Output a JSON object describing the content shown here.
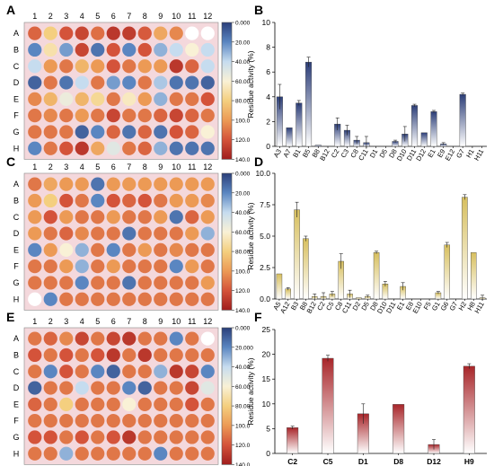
{
  "panels": {
    "A": "A",
    "B": "B",
    "C": "C",
    "D": "D",
    "E": "E",
    "F": "F"
  },
  "plate": {
    "columns": [
      "1",
      "2",
      "3",
      "4",
      "5",
      "6",
      "7",
      "8",
      "9",
      "10",
      "11",
      "12"
    ],
    "rows": [
      "A",
      "B",
      "C",
      "D",
      "E",
      "F",
      "G",
      "H"
    ]
  },
  "colorbar": {
    "ticks_AC": [
      "0.000",
      "20.00",
      "40.00",
      "60.00",
      "80.00",
      "100.0",
      "120.0",
      "140.0"
    ],
    "ticks_E": [
      "0.000",
      "20.000",
      "40.00",
      "60.00",
      "80.00",
      "100.0",
      "120.0",
      "140.0"
    ],
    "colors": [
      "#2b3f7a",
      "#5a86c1",
      "#c6dcef",
      "#f9f1d6",
      "#f4cf7f",
      "#ec9a55",
      "#d4533a",
      "#a01d1d"
    ]
  },
  "chart_data": [
    {
      "type": "heatmap",
      "title": "",
      "rows": [
        "A",
        "B",
        "C",
        "D",
        "E",
        "F",
        "G",
        "H"
      ],
      "columns": [
        "1",
        "2",
        "3",
        "4",
        "5",
        "6",
        "7",
        "8",
        "9",
        "10",
        "11",
        "12"
      ],
      "range": [
        0,
        140
      ],
      "values": [
        [
          115,
          80,
          120,
          125,
          112,
          130,
          128,
          118,
          95,
          105,
          null,
          null
        ],
        [
          20,
          70,
          25,
          125,
          15,
          120,
          20,
          120,
          30,
          40,
          60,
          40
        ],
        [
          40,
          100,
          110,
          90,
          100,
          120,
          110,
          100,
          100,
          130,
          115,
          40
        ],
        [
          10,
          110,
          15,
          40,
          110,
          25,
          20,
          110,
          35,
          15,
          15,
          10
        ],
        [
          105,
          90,
          55,
          90,
          75,
          110,
          65,
          100,
          30,
          110,
          110,
          120
        ],
        [
          110,
          105,
          110,
          100,
          110,
          125,
          110,
          110,
          115,
          125,
          115,
          110
        ],
        [
          110,
          110,
          110,
          10,
          20,
          115,
          15,
          115,
          15,
          120,
          115,
          60
        ],
        [
          20,
          110,
          120,
          130,
          95,
          50,
          110,
          115,
          30,
          15,
          15,
          15
        ]
      ]
    },
    {
      "type": "bar",
      "ylabel": "Residue activity (%)",
      "xlabel": "",
      "ylim": [
        0,
        10
      ],
      "yticks": [
        "0",
        "2",
        "4",
        "6",
        "8",
        "10"
      ],
      "categories": [
        "A3",
        "A7",
        "B1",
        "B5",
        "B8",
        "B12",
        "C2",
        "C3",
        "C8",
        "C11",
        "D1",
        "D5",
        "D8",
        "D10",
        "D11",
        "D12",
        "E1",
        "E9",
        "E12",
        "G7",
        "H1",
        "H11"
      ],
      "values": [
        4.0,
        1.5,
        3.5,
        6.8,
        0.1,
        0.0,
        1.8,
        1.3,
        0.5,
        0.3,
        0.0,
        0.0,
        0.4,
        1.0,
        3.3,
        1.1,
        2.8,
        0.2,
        0.0,
        4.2,
        0.0,
        0.0
      ],
      "errors": [
        1.0,
        0.0,
        0.2,
        0.4,
        0.0,
        0.0,
        0.5,
        0.4,
        0.3,
        0.5,
        0.0,
        0.0,
        0.1,
        0.6,
        0.1,
        0.0,
        0.1,
        0.1,
        0.0,
        0.1,
        0.0,
        0.0
      ],
      "color_top": "#2c3e78",
      "color_bottom": "#ffffff"
    },
    {
      "type": "heatmap",
      "title": "",
      "rows": [
        "A",
        "B",
        "C",
        "D",
        "E",
        "F",
        "G",
        "H"
      ],
      "columns": [
        "1",
        "2",
        "3",
        "4",
        "5",
        "6",
        "7",
        "8",
        "9",
        "10",
        "11",
        "12"
      ],
      "range": [
        0,
        140
      ],
      "values": [
        [
          110,
          95,
          100,
          100,
          15,
          100,
          100,
          100,
          100,
          100,
          100,
          100
        ],
        [
          100,
          80,
          120,
          110,
          20,
          120,
          115,
          120,
          110,
          100,
          100,
          105
        ],
        [
          100,
          120,
          100,
          110,
          110,
          100,
          110,
          110,
          100,
          15,
          115,
          100
        ],
        [
          100,
          110,
          115,
          105,
          110,
          110,
          15,
          110,
          110,
          110,
          100,
          30
        ],
        [
          20,
          100,
          60,
          30,
          110,
          20,
          110,
          100,
          110,
          105,
          110,
          110
        ],
        [
          110,
          110,
          100,
          30,
          110,
          100,
          110,
          110,
          110,
          20,
          100,
          110
        ],
        [
          110,
          110,
          110,
          20,
          110,
          110,
          15,
          110,
          110,
          110,
          110,
          100
        ],
        [
          null,
          20,
          110,
          110,
          110,
          110,
          110,
          110,
          110,
          110,
          110,
          110
        ]
      ]
    },
    {
      "type": "bar",
      "ylabel": "Residue activity (%)",
      "xlabel": "",
      "ylim": [
        0,
        10
      ],
      "yticks": [
        "0.0",
        "2.5",
        "5.0",
        "7.5",
        "10.0"
      ],
      "categories": [
        "A5",
        "A12",
        "B3",
        "B8",
        "B12",
        "C2",
        "C5",
        "C8",
        "C11",
        "D2",
        "D5",
        "D8",
        "D10",
        "D11",
        "E1",
        "E8",
        "E10",
        "F5",
        "G1",
        "G6",
        "G7",
        "H2",
        "H8",
        "H11"
      ],
      "values": [
        2.0,
        0.8,
        7.1,
        4.8,
        0.2,
        0.2,
        0.4,
        3.0,
        0.4,
        0.1,
        0.2,
        3.7,
        1.2,
        0.0,
        1.0,
        0.0,
        0.0,
        0.0,
        0.5,
        4.3,
        0.0,
        8.1,
        3.7,
        0.1
      ],
      "errors": [
        0.0,
        0.1,
        0.6,
        0.2,
        0.2,
        0.3,
        0.2,
        0.6,
        0.3,
        0.0,
        0.1,
        0.1,
        0.2,
        0.0,
        0.3,
        0.0,
        0.0,
        0.0,
        0.1,
        0.2,
        0.0,
        0.2,
        0.0,
        0.2
      ],
      "color_top": "#d7bf5e",
      "color_bottom": "#ffffff"
    },
    {
      "type": "heatmap",
      "title": "",
      "rows": [
        "A",
        "B",
        "C",
        "D",
        "E",
        "F",
        "G",
        "H"
      ],
      "columns": [
        "1",
        "2",
        "3",
        "4",
        "5",
        "6",
        "7",
        "8",
        "9",
        "10",
        "11",
        "12"
      ],
      "range": [
        0,
        140
      ],
      "values": [
        [
          110,
          115,
          105,
          125,
          110,
          125,
          130,
          110,
          110,
          20,
          110,
          null
        ],
        [
          120,
          110,
          120,
          110,
          120,
          130,
          110,
          130,
          110,
          110,
          110,
          110
        ],
        [
          110,
          20,
          120,
          110,
          20,
          10,
          110,
          110,
          30,
          130,
          125,
          20
        ],
        [
          10,
          110,
          110,
          40,
          110,
          110,
          20,
          10,
          110,
          110,
          125,
          50
        ],
        [
          115,
          110,
          80,
          110,
          110,
          110,
          60,
          110,
          110,
          110,
          120,
          110
        ],
        [
          110,
          110,
          110,
          110,
          110,
          110,
          110,
          110,
          110,
          110,
          110,
          110
        ],
        [
          120,
          120,
          110,
          120,
          110,
          120,
          130,
          110,
          110,
          110,
          110,
          110
        ],
        [
          110,
          110,
          30,
          110,
          110,
          110,
          110,
          110,
          20,
          110,
          110,
          110
        ]
      ]
    },
    {
      "type": "bar",
      "ylabel": "Residue activity (%)",
      "xlabel": "",
      "ylim": [
        0,
        25
      ],
      "yticks": [
        "0",
        "5",
        "10",
        "15",
        "20",
        "25"
      ],
      "categories": [
        "C2",
        "C5",
        "D1",
        "D8",
        "D12",
        "H9"
      ],
      "values": [
        5.2,
        19.2,
        8.0,
        9.9,
        1.8,
        17.6
      ],
      "errors": [
        0.3,
        0.6,
        2.0,
        0.0,
        1.0,
        0.5
      ],
      "color_top": "#a8262a",
      "color_bottom": "#ffffff"
    }
  ]
}
